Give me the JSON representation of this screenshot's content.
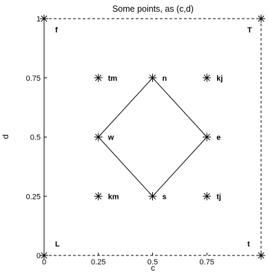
{
  "chart_data": {
    "type": "scatter",
    "title": "Some points, as (c,d)",
    "xlabel": "c",
    "ylabel": "d",
    "xlim": [
      0,
      1
    ],
    "ylim": [
      0,
      1
    ],
    "xticks": [
      {
        "value": 0,
        "label": "0"
      },
      {
        "value": 0.25,
        "label": "0.25"
      },
      {
        "value": 0.5,
        "label": "0.5"
      },
      {
        "value": 0.75,
        "label": "0.75"
      }
    ],
    "yticks": [
      {
        "value": 0,
        "label": "0"
      },
      {
        "value": 0.25,
        "label": "0.25"
      },
      {
        "value": 0.5,
        "label": "0.5"
      },
      {
        "value": 0.75,
        "label": "0.75"
      },
      {
        "value": 1,
        "label": "1"
      }
    ],
    "grid": false,
    "marker": "asterisk",
    "points": [
      {
        "x": 0,
        "y": 1,
        "label": "f"
      },
      {
        "x": 1,
        "y": 1,
        "label": "T"
      },
      {
        "x": 0.25,
        "y": 0.75,
        "label": "tm"
      },
      {
        "x": 0.5,
        "y": 0.75,
        "label": "n"
      },
      {
        "x": 0.75,
        "y": 0.75,
        "label": "kj"
      },
      {
        "x": 0.25,
        "y": 0.5,
        "label": "w"
      },
      {
        "x": 0.75,
        "y": 0.5,
        "label": "e"
      },
      {
        "x": 0.25,
        "y": 0.25,
        "label": "km"
      },
      {
        "x": 0.5,
        "y": 0.25,
        "label": "s"
      },
      {
        "x": 0.75,
        "y": 0.25,
        "label": "tj"
      },
      {
        "x": 0,
        "y": 0,
        "label": "L"
      },
      {
        "x": 1,
        "y": 0,
        "label": "t"
      }
    ],
    "lines": [
      {
        "style": "solid",
        "points": [
          [
            0.5,
            0.75
          ],
          [
            0.75,
            0.5
          ],
          [
            0.5,
            0.25
          ],
          [
            0.25,
            0.5
          ],
          [
            0.5,
            0.75
          ]
        ]
      },
      {
        "style": "dashed",
        "points": [
          [
            0,
            1
          ],
          [
            1,
            1
          ]
        ]
      },
      {
        "style": "dashed",
        "points": [
          [
            1,
            1
          ],
          [
            1,
            0
          ]
        ]
      },
      {
        "style": "dashed",
        "points": [
          [
            0,
            0
          ],
          [
            1,
            0
          ]
        ]
      }
    ],
    "colors": {
      "foreground": "#000000",
      "background": "#ffffff"
    }
  }
}
